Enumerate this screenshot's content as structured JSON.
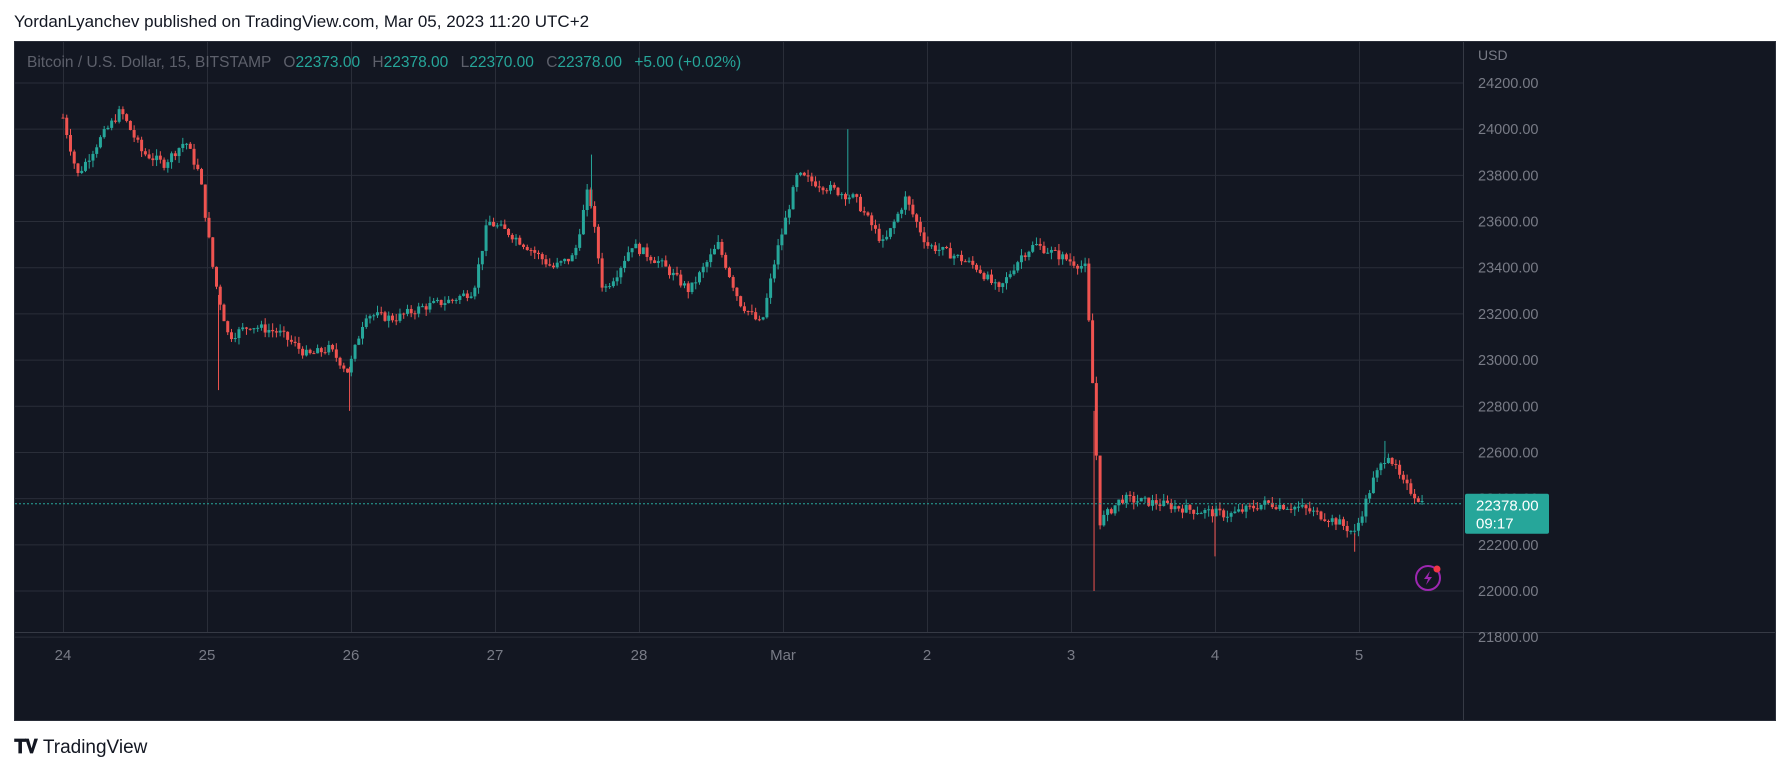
{
  "header": {
    "publisher": "YordanLyanchev published on TradingView.com, Mar 05, 2023 11:20 UTC+2"
  },
  "legend": {
    "symbol": "Bitcoin / U.S. Dollar, 15, BITSTAMP",
    "open_key": "O",
    "open": "22373.00",
    "high_key": "H",
    "high": "22378.00",
    "low_key": "L",
    "low": "22370.00",
    "close_key": "C",
    "close": "22378.00",
    "change": "+5.00 (+0.02%)"
  },
  "price_scale": {
    "currency": "USD",
    "last_price": "22378.00",
    "countdown": "09:17"
  },
  "footer": {
    "brand": "TradingView"
  },
  "colors": {
    "up": "#26a69a",
    "down": "#ef5350",
    "background": "#131722",
    "grid": "#2a2e39",
    "accent": "#9c27b0"
  },
  "chart_data": {
    "type": "candlestick",
    "interval": "15",
    "ylim": [
      21800,
      24300
    ],
    "y_ticks": [
      24200,
      24000,
      23800,
      23600,
      23400,
      23200,
      23000,
      22800,
      22600,
      22400,
      22200,
      22000,
      21800
    ],
    "x_labels": [
      "24",
      "25",
      "26",
      "27",
      "28",
      "Mar",
      "2",
      "3",
      "4",
      "5"
    ],
    "last_price": 22378,
    "series_path": [
      [
        0.0,
        24050
      ],
      [
        0.1,
        23800
      ],
      [
        0.25,
        23950
      ],
      [
        0.4,
        24080
      ],
      [
        0.55,
        23900
      ],
      [
        0.7,
        23850
      ],
      [
        0.85,
        23950
      ],
      [
        0.95,
        23800
      ],
      [
        1.05,
        23360
      ],
      [
        1.15,
        23100
      ],
      [
        1.3,
        23150
      ],
      [
        1.5,
        23120
      ],
      [
        1.7,
        23020
      ],
      [
        1.85,
        23050
      ],
      [
        1.98,
        22950
      ],
      [
        2.1,
        23200
      ],
      [
        2.3,
        23180
      ],
      [
        2.5,
        23230
      ],
      [
        2.7,
        23260
      ],
      [
        2.85,
        23300
      ],
      [
        2.95,
        23600
      ],
      [
        3.1,
        23550
      ],
      [
        3.25,
        23480
      ],
      [
        3.4,
        23400
      ],
      [
        3.55,
        23450
      ],
      [
        3.65,
        23750
      ],
      [
        3.75,
        23300
      ],
      [
        3.85,
        23380
      ],
      [
        3.95,
        23500
      ],
      [
        4.15,
        23420
      ],
      [
        4.35,
        23300
      ],
      [
        4.55,
        23500
      ],
      [
        4.7,
        23250
      ],
      [
        4.85,
        23150
      ],
      [
        4.95,
        23450
      ],
      [
        5.1,
        23800
      ],
      [
        5.3,
        23750
      ],
      [
        5.5,
        23700
      ],
      [
        5.7,
        23500
      ],
      [
        5.85,
        23700
      ],
      [
        6.0,
        23500
      ],
      [
        6.2,
        23450
      ],
      [
        6.35,
        23400
      ],
      [
        6.5,
        23300
      ],
      [
        6.65,
        23450
      ],
      [
        6.75,
        23500
      ],
      [
        7.1,
        23400
      ],
      [
        7.15,
        22900
      ],
      [
        7.2,
        22300
      ],
      [
        7.35,
        22400
      ],
      [
        7.6,
        22380
      ],
      [
        7.85,
        22350
      ],
      [
        8.1,
        22330
      ],
      [
        8.35,
        22380
      ],
      [
        8.6,
        22360
      ],
      [
        8.85,
        22300
      ],
      [
        8.97,
        22250
      ],
      [
        9.1,
        22480
      ],
      [
        9.2,
        22600
      ],
      [
        9.3,
        22470
      ],
      [
        9.45,
        22378
      ]
    ],
    "spikes": [
      {
        "x": 1.08,
        "low": 22870
      },
      {
        "x": 1.99,
        "low": 22780
      },
      {
        "x": 3.67,
        "high": 23890
      },
      {
        "x": 5.45,
        "high": 24000
      },
      {
        "x": 7.16,
        "low": 22000
      },
      {
        "x": 9.18,
        "high": 22650
      },
      {
        "x": 8.0,
        "low": 22150
      },
      {
        "x": 8.97,
        "low": 22170
      }
    ]
  }
}
